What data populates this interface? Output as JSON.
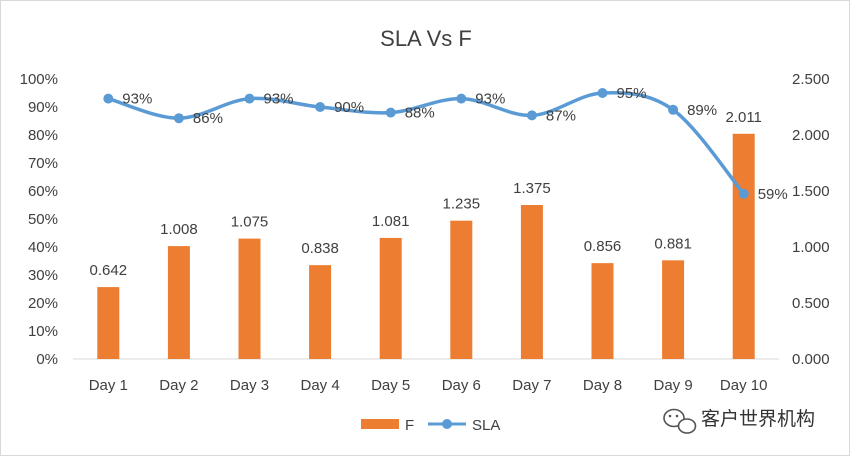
{
  "chart_data": {
    "type": "bar+line",
    "title": "SLA Vs F",
    "categories": [
      "Day 1",
      "Day 2",
      "Day 3",
      "Day 4",
      "Day 5",
      "Day 6",
      "Day 7",
      "Day 8",
      "Day 9",
      "Day 10"
    ],
    "series": [
      {
        "name": "F",
        "type": "bar",
        "axis": "secondary",
        "values": [
          0.642,
          1.008,
          1.075,
          0.838,
          1.081,
          1.235,
          1.375,
          0.856,
          0.881,
          2.011
        ],
        "labels": [
          "0.642",
          "1.008",
          "1.075",
          "0.838",
          "1.081",
          "1.235",
          "1.375",
          "0.856",
          "0.881",
          "2.011"
        ],
        "color": "#ed7d31"
      },
      {
        "name": "SLA",
        "type": "line",
        "axis": "primary",
        "values": [
          0.93,
          0.86,
          0.93,
          0.9,
          0.88,
          0.93,
          0.87,
          0.95,
          0.89,
          0.59
        ],
        "labels": [
          "93%",
          "86%",
          "93%",
          "90%",
          "88%",
          "93%",
          "87%",
          "95%",
          "89%",
          "59%"
        ],
        "color": "#5b9bd5"
      }
    ],
    "y_primary": {
      "range": [
        0,
        1
      ],
      "ticks": [
        "0%",
        "10%",
        "20%",
        "30%",
        "40%",
        "50%",
        "60%",
        "70%",
        "80%",
        "90%",
        "100%"
      ]
    },
    "y_secondary": {
      "range": [
        0,
        2.5
      ],
      "ticks": [
        "0.000",
        "0.500",
        "1.000",
        "1.500",
        "2.000",
        "2.500"
      ]
    },
    "grid": false,
    "legend": {
      "position": "bottom",
      "entries": [
        "F",
        "SLA"
      ]
    }
  },
  "watermark": {
    "text": "客户世界机构",
    "icon": "wechat-icon"
  }
}
